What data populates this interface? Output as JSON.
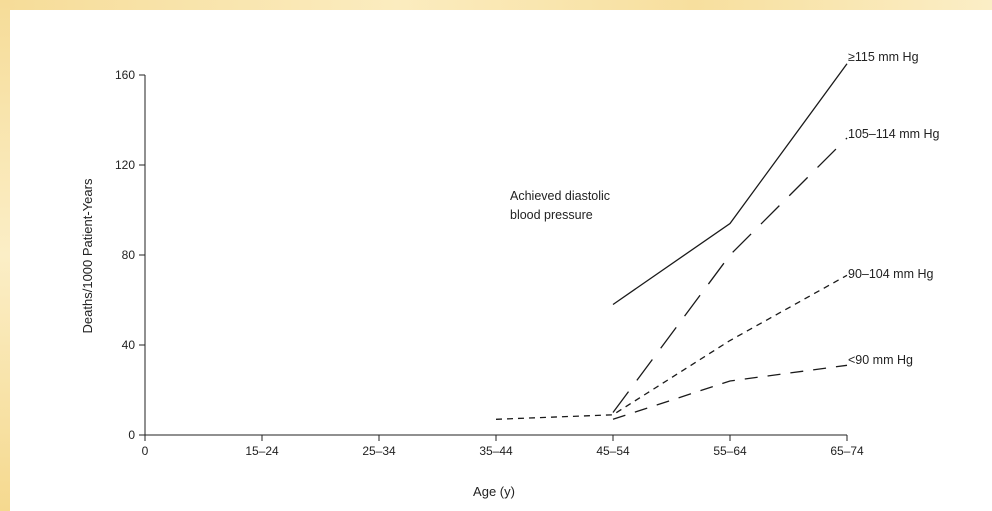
{
  "chart_data": {
    "type": "line",
    "xlabel": "Age (y)",
    "ylabel": "Deaths/1000 Patient-Years",
    "categories": [
      "0",
      "15–24",
      "25–34",
      "35–44",
      "45–54",
      "55–64",
      "65–74"
    ],
    "yticks": [
      "0",
      "40",
      "80",
      "120",
      "160"
    ],
    "ylim": [
      0,
      160
    ],
    "annotation": [
      "Achieved diastolic",
      "blood pressure"
    ],
    "series": [
      {
        "name": "≥115 mm Hg",
        "style": "solid",
        "x": [
          4.0,
          5.0,
          6.0
        ],
        "y": [
          58,
          94,
          165
        ]
      },
      {
        "name": "105–114 mm Hg",
        "style": "long-dash",
        "x": [
          4.0,
          5.0,
          6.0
        ],
        "y": [
          10,
          80,
          132
        ]
      },
      {
        "name": "90–104 mm Hg",
        "style": "short-dash",
        "x": [
          3.0,
          4.0,
          5.0,
          6.0
        ],
        "y": [
          7,
          9,
          42,
          71
        ]
      },
      {
        "name": "<90 mm Hg",
        "style": "dash",
        "x": [
          4.0,
          5.0,
          6.0
        ],
        "y": [
          7,
          24,
          31
        ]
      }
    ],
    "grid": false,
    "colors": {
      "line": "#1a1a1a",
      "frame": "#f7e3a6"
    }
  }
}
